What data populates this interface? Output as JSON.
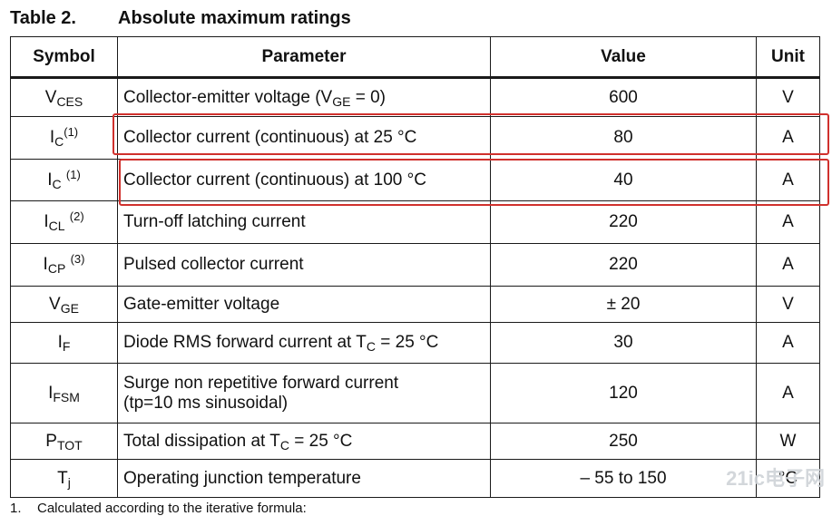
{
  "caption": {
    "number": "Table 2.",
    "title": "Absolute maximum ratings"
  },
  "columns": [
    "Symbol",
    "Parameter",
    "Value",
    "Unit"
  ],
  "rows": [
    {
      "sym": "V",
      "sub": "CES",
      "sup": "",
      "param": [
        "Collector-emitter voltage (V",
        "GE",
        " = 0)"
      ],
      "value": "600",
      "unit": "V"
    },
    {
      "sym": "I",
      "sub": "C",
      "sup": "(1)",
      "param": [
        "Collector current (continuous) at 25 °C"
      ],
      "value": "80",
      "unit": "A"
    },
    {
      "sym": "I",
      "sub": "C",
      "sup": "(1)",
      "param": [
        "Collector current (continuous) at 100 °C"
      ],
      "value": "40",
      "unit": "A"
    },
    {
      "sym": "I",
      "sub": "CL",
      "sup": "(2)",
      "param": [
        "Turn-off latching current"
      ],
      "value": "220",
      "unit": "A"
    },
    {
      "sym": "I",
      "sub": "CP",
      "sup": "(3)",
      "param": [
        "Pulsed collector current"
      ],
      "value": "220",
      "unit": "A"
    },
    {
      "sym": "V",
      "sub": "GE",
      "sup": "",
      "param": [
        "Gate-emitter voltage"
      ],
      "value": "± 20",
      "unit": "V"
    },
    {
      "sym": "I",
      "sub": "F",
      "sup": "",
      "param": [
        "Diode RMS forward current at T",
        "C",
        " = 25 °C"
      ],
      "value": "30",
      "unit": "A"
    },
    {
      "sym": "I",
      "sub": "FSM",
      "sup": "",
      "param": [
        "Surge non repetitive forward current",
        "(tp=10 ms sinusoidal)"
      ],
      "value": "120",
      "unit": "A"
    },
    {
      "sym": "P",
      "sub": "TOT",
      "sup": "",
      "param": [
        "Total dissipation at T",
        "C",
        " = 25 °C"
      ],
      "value": "250",
      "unit": "W"
    },
    {
      "sym": "T",
      "sub": "j",
      "sup": "",
      "param": [
        "Operating junction temperature"
      ],
      "value": "– 55 to 150",
      "unit": "°C"
    }
  ],
  "footnote": {
    "number": "1.",
    "text": "Calculated according to the iterative formula:"
  },
  "watermark": "21ic电子网",
  "highlight_color": "#d0312d"
}
